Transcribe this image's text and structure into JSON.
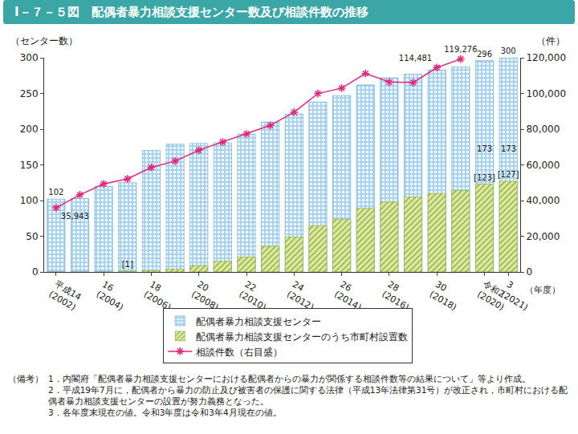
{
  "chart_data": {
    "type": "bar",
    "title": "Ⅰ－７－５図　配偶者暴力相談支援センター数及び相談件数の推移",
    "categories": [
      "平成14\n(2002)",
      null,
      "16\n(2004)",
      null,
      "18\n(2006)",
      null,
      "20\n(2008)",
      null,
      "22\n(2010)",
      null,
      "24\n(2012)",
      null,
      "26\n(2014)",
      null,
      "28\n(2016)",
      null,
      "30\n(2018)",
      null,
      "令和2\n(2020)",
      "3\n(2021)"
    ],
    "series": [
      {
        "name": "配偶者暴力相談支援センター",
        "type": "bar",
        "color": "#a6d2f0",
        "values": [
          102,
          103,
          120,
          125,
          170,
          179,
          180,
          181,
          193,
          210,
          221,
          238,
          247,
          262,
          272,
          277,
          283,
          287,
          296,
          300
        ],
        "value_labels": [
          "102",
          null,
          null,
          null,
          null,
          null,
          null,
          null,
          null,
          null,
          null,
          null,
          null,
          null,
          null,
          null,
          null,
          null,
          "296",
          "300"
        ]
      },
      {
        "name": "配偶者暴力相談支援センターのうち市町村設置数",
        "type": "bar",
        "color": "#dfe9a8",
        "values": [
          0,
          0,
          0,
          1,
          2,
          4,
          9,
          15,
          21,
          36,
          49,
          65,
          74,
          89,
          98,
          105,
          110,
          114,
          123,
          127
        ],
        "value_labels": [
          null,
          null,
          null,
          "[1]",
          null,
          null,
          null,
          null,
          null,
          null,
          null,
          null,
          null,
          null,
          null,
          null,
          null,
          null,
          "[123]",
          "[127]"
        ]
      },
      {
        "name": "相談件数（右目盛）",
        "type": "line",
        "axis": "y2",
        "color": "#e0287c",
        "marker": "asterisk",
        "values": [
          35943,
          43225,
          49329,
          52145,
          58528,
          62078,
          68196,
          72792,
          77334,
          82099,
          89490,
          99961,
          102963,
          111172,
          106367,
          106110,
          114481,
          119276,
          null,
          null
        ],
        "value_labels": [
          "35,943",
          null,
          null,
          null,
          null,
          null,
          null,
          null,
          null,
          null,
          null,
          null,
          null,
          null,
          null,
          null,
          "114,481",
          "119,276",
          null,
          null
        ]
      }
    ],
    "ylim": [
      0,
      300
    ],
    "yticks": [
      0,
      50,
      100,
      150,
      200,
      250,
      300
    ],
    "y2lim": [
      0,
      120000
    ],
    "y2ticks": [
      0,
      {
        "value": 20000,
        "label": "20,000"
      },
      {
        "value": 40000,
        "label": "40,000"
      },
      {
        "value": 60000,
        "label": "60,000"
      },
      {
        "value": 80000,
        "label": "80,000"
      },
      {
        "value": 100000,
        "label": "100,000"
      },
      {
        "value": 120000,
        "label": "120,000"
      }
    ],
    "y_label": "（センター数）",
    "y2_label": "（件）",
    "x_label": "（年度）",
    "annotations": [
      {
        "text": "173",
        "x": 18,
        "y": 173
      },
      {
        "text": "173",
        "x": 19,
        "y": 173
      }
    ],
    "data_labels": true,
    "grid": false,
    "stacked": false,
    "legend": "bottom",
    "notes": {
      "label": "（備考）",
      "lines": [
        "1．内閣府「配偶者暴力相談支援センターにおける配偶者からの暴力が関係する相談件数等の結果について」等より作成。",
        "2．平成19年7月に，配偶者から暴力の防止及び被害者の保護に関する法律（平成13年法律第31号）が改正され，市町村における配偶者暴力相談支援センターの設置が努力義務となった。",
        "3．各年度末現在の値。令和3年度は令和3年4月現在の値。"
      ]
    }
  }
}
